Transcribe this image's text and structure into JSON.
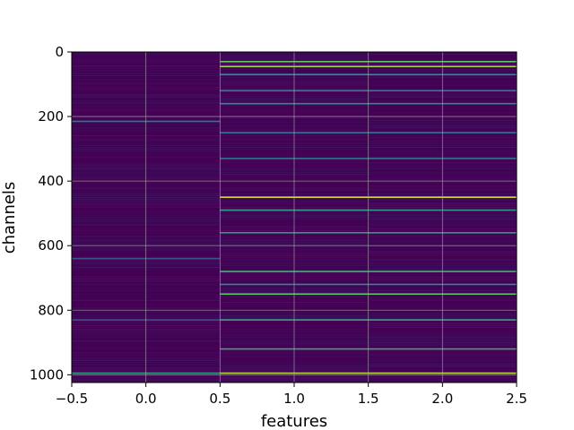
{
  "chart_data": {
    "type": "heatmap",
    "title": "",
    "xlabel": "features",
    "ylabel": "channels",
    "colormap": "viridis",
    "background_color": "#440154",
    "grid": true,
    "xlim": [
      -0.5,
      2.5
    ],
    "ylim": [
      1024,
      0
    ],
    "y_inverted": true,
    "x_ticks": [
      -0.5,
      0.0,
      0.5,
      1.0,
      1.5,
      2.0,
      2.5
    ],
    "x_tick_labels": [
      "−0.5",
      "0.0",
      "0.5",
      "1.0",
      "1.5",
      "2.0",
      "2.5"
    ],
    "y_ticks": [
      0,
      200,
      400,
      600,
      800,
      1000
    ],
    "y_tick_labels": [
      "0",
      "200",
      "400",
      "600",
      "800",
      "1000"
    ],
    "columns": [
      0,
      1,
      2
    ],
    "channels": 1024,
    "notable_cells": [
      {
        "column": 0,
        "channel": 215,
        "value": 0.4
      },
      {
        "column": 0,
        "channel": 995,
        "value": 0.55
      },
      {
        "column": 0,
        "channel": 640,
        "value": 0.25
      },
      {
        "column": 0,
        "channel": 830,
        "value": 0.25
      },
      {
        "column": 1,
        "channel": 30,
        "value": 0.75
      },
      {
        "column": 1,
        "channel": 45,
        "value": 0.85
      },
      {
        "column": 1,
        "channel": 70,
        "value": 0.5
      },
      {
        "column": 1,
        "channel": 120,
        "value": 0.45
      },
      {
        "column": 1,
        "channel": 160,
        "value": 0.5
      },
      {
        "column": 1,
        "channel": 250,
        "value": 0.4
      },
      {
        "column": 1,
        "channel": 330,
        "value": 0.4
      },
      {
        "column": 1,
        "channel": 450,
        "value": 0.95
      },
      {
        "column": 1,
        "channel": 490,
        "value": 0.55
      },
      {
        "column": 1,
        "channel": 560,
        "value": 0.55
      },
      {
        "column": 1,
        "channel": 680,
        "value": 0.65
      },
      {
        "column": 1,
        "channel": 720,
        "value": 0.5
      },
      {
        "column": 1,
        "channel": 750,
        "value": 0.75
      },
      {
        "column": 1,
        "channel": 830,
        "value": 0.6
      },
      {
        "column": 1,
        "channel": 920,
        "value": 0.6
      },
      {
        "column": 1,
        "channel": 995,
        "value": 0.9
      },
      {
        "column": 2,
        "channel": 30,
        "value": 0.75
      },
      {
        "column": 2,
        "channel": 45,
        "value": 0.85
      },
      {
        "column": 2,
        "channel": 70,
        "value": 0.5
      },
      {
        "column": 2,
        "channel": 120,
        "value": 0.45
      },
      {
        "column": 2,
        "channel": 160,
        "value": 0.5
      },
      {
        "column": 2,
        "channel": 250,
        "value": 0.4
      },
      {
        "column": 2,
        "channel": 330,
        "value": 0.4
      },
      {
        "column": 2,
        "channel": 450,
        "value": 0.95
      },
      {
        "column": 2,
        "channel": 490,
        "value": 0.55
      },
      {
        "column": 2,
        "channel": 560,
        "value": 0.55
      },
      {
        "column": 2,
        "channel": 680,
        "value": 0.65
      },
      {
        "column": 2,
        "channel": 720,
        "value": 0.5
      },
      {
        "column": 2,
        "channel": 750,
        "value": 0.75
      },
      {
        "column": 2,
        "channel": 830,
        "value": 0.6
      },
      {
        "column": 2,
        "channel": 920,
        "value": 0.6
      },
      {
        "column": 2,
        "channel": 995,
        "value": 0.9
      }
    ]
  }
}
